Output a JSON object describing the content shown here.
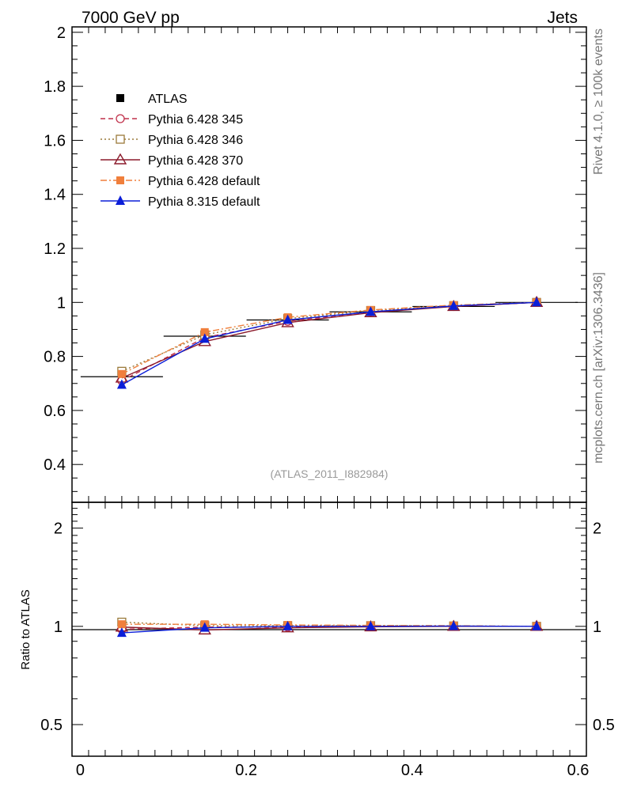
{
  "header": {
    "title_left": "7000 GeV pp",
    "title_right": "Jets",
    "side_label_top": "Rivet 4.1.0, ≥ 100k events",
    "side_label_bottom": "mcplots.cern.ch [arXiv:1306.3436]",
    "analysis_label": "(ATLAS_2011_I882984)"
  },
  "chart_data": [
    {
      "type": "line",
      "title": "7000 GeV pp Jets",
      "xlabel": "",
      "ylabel": "",
      "xlim": [
        -0.01,
        0.61
      ],
      "ylim": [
        0.26,
        2.02
      ],
      "x_ticks": [
        0,
        0.2,
        0.4,
        0.6
      ],
      "y_ticks": [
        0.4,
        0.6,
        0.8,
        1,
        1.2,
        1.4,
        1.6,
        1.8,
        2
      ],
      "x_tick_labels": [
        "0",
        "0.2",
        "0.4",
        "0.6"
      ],
      "y_tick_labels": [
        "0.4",
        "0.6",
        "0.8",
        "1",
        "1.2",
        "1.4",
        "1.6",
        "1.8",
        "2"
      ],
      "legend_position": "top-left",
      "x": [
        0.05,
        0.15,
        0.25,
        0.35,
        0.45,
        0.55
      ],
      "series": [
        {
          "name": "ATLAS",
          "color": "#000000",
          "line": "none",
          "marker": "filled-square",
          "values": [
            0.725,
            0.875,
            0.935,
            0.965,
            0.985,
            1.0
          ]
        },
        {
          "name": "Pythia 6.428 345",
          "color": "#c0304a",
          "line": "dashed",
          "marker": "open-circle",
          "values": [
            0.71,
            0.87,
            0.93,
            0.965,
            0.985,
            1.0
          ]
        },
        {
          "name": "Pythia 6.428 346",
          "color": "#9a7a3a",
          "line": "dotted",
          "marker": "open-square",
          "values": [
            0.745,
            0.88,
            0.94,
            0.97,
            0.988,
            1.0
          ]
        },
        {
          "name": "Pythia 6.428 370",
          "color": "#8b1a2b",
          "line": "solid",
          "marker": "open-triangle",
          "values": [
            0.72,
            0.855,
            0.925,
            0.962,
            0.985,
            1.0
          ]
        },
        {
          "name": "Pythia 6.428 default",
          "color": "#f07f3c",
          "line": "dashdot",
          "marker": "filled-square",
          "values": [
            0.735,
            0.89,
            0.945,
            0.972,
            0.99,
            1.0
          ]
        },
        {
          "name": "Pythia 8.315 default",
          "color": "#0b1ed8",
          "line": "solid",
          "marker": "filled-triangle",
          "values": [
            0.695,
            0.865,
            0.935,
            0.965,
            0.987,
            1.0
          ]
        }
      ]
    },
    {
      "type": "line",
      "title": "",
      "xlabel": "",
      "ylabel": "Ratio to ATLAS",
      "xlim": [
        -0.01,
        0.61
      ],
      "ylim": [
        0.4,
        2.4
      ],
      "y_scale": "log",
      "x_ticks": [
        0,
        0.2,
        0.4,
        0.6
      ],
      "y_ticks": [
        0.5,
        1,
        2
      ],
      "x_tick_labels": [
        "0",
        "0.2",
        "0.4",
        "0.6"
      ],
      "y_tick_labels": [
        "0.5",
        "1",
        "2"
      ],
      "x": [
        0.05,
        0.15,
        0.25,
        0.35,
        0.45,
        0.55
      ],
      "series": [
        {
          "name": "Pythia 6.428 345",
          "color": "#c0304a",
          "line": "dashed",
          "marker": "open-circle",
          "values": [
            0.98,
            0.995,
            0.995,
            1.0,
            1.0,
            1.0
          ]
        },
        {
          "name": "Pythia 6.428 346",
          "color": "#9a7a3a",
          "line": "dotted",
          "marker": "open-square",
          "values": [
            1.03,
            1.005,
            1.005,
            1.005,
            1.003,
            1.0
          ]
        },
        {
          "name": "Pythia 6.428 370",
          "color": "#8b1a2b",
          "line": "solid",
          "marker": "open-triangle",
          "values": [
            0.995,
            0.975,
            0.99,
            0.997,
            1.0,
            1.0
          ]
        },
        {
          "name": "Pythia 6.428 default",
          "color": "#f07f3c",
          "line": "dashdot",
          "marker": "filled-square",
          "values": [
            1.015,
            1.015,
            1.01,
            1.007,
            1.005,
            1.0
          ]
        },
        {
          "name": "Pythia 8.315 default",
          "color": "#0b1ed8",
          "line": "solid",
          "marker": "filled-triangle",
          "values": [
            0.955,
            0.99,
            1.0,
            1.0,
            1.002,
            1.0
          ]
        }
      ]
    }
  ]
}
